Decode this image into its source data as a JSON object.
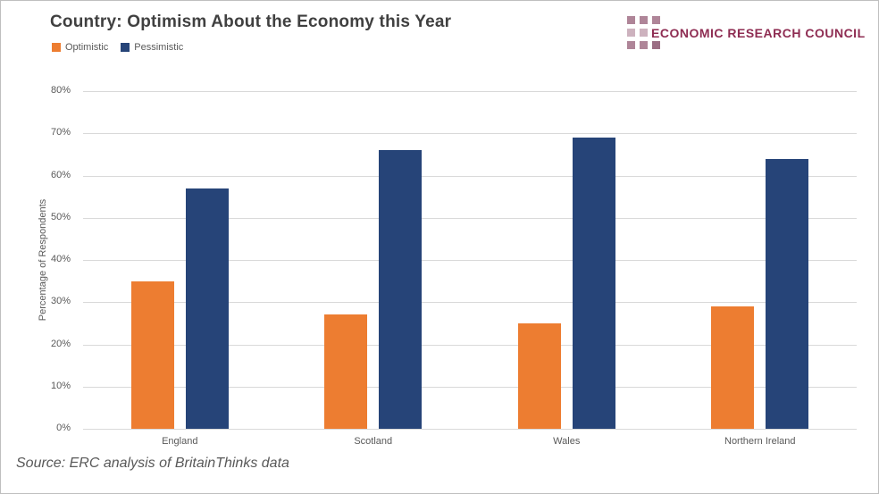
{
  "logo": {
    "text": "ECONOMIC RESEARCH COUNCIL",
    "text_color": "#8E2C52",
    "square_colors": {
      "medium": "#AF8598",
      "light": "#CDB2BE",
      "dark": "#9C6E84"
    },
    "grid_pattern": [
      [
        "medium",
        "medium",
        "medium"
      ],
      [
        "light",
        "light"
      ],
      [
        "medium",
        "medium",
        "dark"
      ]
    ]
  },
  "source": "Source: ERC analysis of BritainThinks data",
  "colors": {
    "title_text": "#404040",
    "axis_text": "#595959",
    "gridline": "#D9D9D9",
    "background": "#FFFFFF",
    "border": "#BFBFBF",
    "optimistic": "#ED7D31",
    "pessimistic": "#264478"
  },
  "chart_data": {
    "type": "bar",
    "title": "Country: Optimism About the Economy this Year",
    "categories": [
      "England",
      "Scotland",
      "Wales",
      "Northern Ireland"
    ],
    "series": [
      {
        "name": "Optimistic",
        "color": "#ED7D31",
        "values": [
          35,
          27,
          25,
          29
        ]
      },
      {
        "name": "Pessimistic",
        "color": "#264478",
        "values": [
          57,
          66,
          69,
          64
        ]
      }
    ],
    "xlabel": "",
    "ylabel": "Percentage of Respondents",
    "ylim": [
      0,
      80
    ],
    "ytick_step": 10,
    "ytick_suffix": "%",
    "grid": true,
    "legend_position": "top-left"
  }
}
